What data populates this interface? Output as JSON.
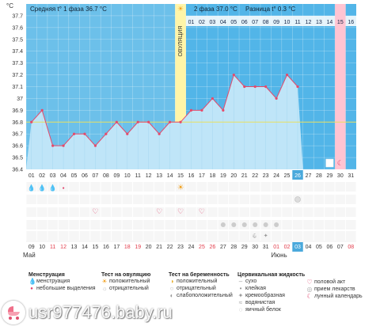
{
  "chart_data": {
    "type": "line",
    "y_unit": "°C",
    "ylim": [
      36.4,
      37.8
    ],
    "y_ticks": [
      36.4,
      36.5,
      36.6,
      36.7,
      36.8,
      36.9,
      37.0,
      37.1,
      37.2,
      37.3,
      37.4,
      37.5,
      37.6,
      37.7
    ],
    "header": {
      "phase1_avg": "Средняя t° 1 фаза 36.7 °С",
      "phase2_avg": "2 фаза 37.0 °С",
      "difference": "Разница t° 0.3 °С"
    },
    "ovulation_label": "ОВУЛЯЦИЯ",
    "ovulation_cycle_day": 15,
    "today_cycle_day": 26,
    "current_cycle_day": 30,
    "coverline": 36.8,
    "phase2_day_numbers": [
      "01",
      "02",
      "03",
      "04",
      "05",
      "06",
      "07",
      "08",
      "09",
      "10",
      "11",
      "12",
      "13",
      "14",
      "15",
      "16"
    ],
    "cycle_day_labels": [
      "01",
      "02",
      "03",
      "04",
      "05",
      "06",
      "07",
      "08",
      "09",
      "10",
      "11",
      "12",
      "13",
      "14",
      "15",
      "16",
      "17",
      "18",
      "19",
      "20",
      "21",
      "22",
      "23",
      "24",
      "25",
      "26",
      "27",
      "28",
      "29",
      "30",
      "31"
    ],
    "x": [
      1,
      2,
      3,
      4,
      5,
      6,
      7,
      8,
      9,
      10,
      11,
      12,
      13,
      14,
      15,
      16,
      17,
      18,
      19,
      20,
      21,
      22,
      23,
      24,
      25,
      26
    ],
    "series": [
      {
        "values": [
          36.8,
          36.9,
          36.6,
          36.6,
          36.7,
          36.7,
          36.6,
          36.7,
          36.8,
          36.7,
          36.8,
          36.8,
          36.7,
          36.8,
          36.8,
          36.9,
          36.9,
          37.0,
          36.9,
          37.2,
          37.1,
          37.1,
          37.1,
          37.0,
          37.2,
          37.1
        ]
      }
    ],
    "calendar_dates": [
      "09",
      "10",
      "11",
      "12",
      "13",
      "14",
      "15",
      "16",
      "17",
      "18",
      "19",
      "20",
      "21",
      "22",
      "23",
      "24",
      "25",
      "26",
      "27",
      "28",
      "29",
      "30",
      "31",
      "01",
      "02",
      "03",
      "04",
      "05",
      "06",
      "07",
      "08"
    ],
    "weekend_dates": [
      "11",
      "12",
      "18",
      "19",
      "25",
      "26",
      "01",
      "02",
      "08"
    ],
    "month_labels": [
      {
        "label": "Май",
        "at_index": 0
      },
      {
        "label": "Июнь",
        "at_index": 23
      }
    ],
    "markers": {
      "menstruation": [
        1,
        2,
        3
      ],
      "spotting": [
        4
      ],
      "ovulation_test_positive": [
        15
      ],
      "intercourse": [
        7,
        13,
        15,
        17
      ],
      "cervical_dry": [
        19,
        20,
        21,
        22,
        23,
        24
      ],
      "medication_pill": [
        26
      ],
      "lunar": [
        22
      ],
      "cervical_watery": [
        22
      ],
      "cervical_creamy": [
        23
      ]
    },
    "colors": {
      "phase1_bg": "#6cc0ea",
      "phase2_bg": "#52b5e8",
      "fill": "#bfe5f8",
      "line": "#e64a6a",
      "ovulation_band": "#fff5a8",
      "current_day_band": "#ffc4d2",
      "coverline": "#e8e060",
      "today_highlight": "#4aa9dc"
    }
  },
  "legend": {
    "menstruation": {
      "title": "Менструация",
      "items": [
        "менструация",
        "небольшие выделения"
      ]
    },
    "ovulation_test": {
      "title": "Тест на овуляцию",
      "items": [
        "положительный",
        "отрицательный"
      ]
    },
    "pregnancy_test": {
      "title": "Тест на беременность",
      "items": [
        "положительный",
        "отрицательный",
        "слабоположительный"
      ]
    },
    "cervical": {
      "title": "Цервикальная жидкость",
      "items": [
        "сухо",
        "клейкая",
        "кремообразная",
        "водянистая",
        "яичный белок"
      ]
    },
    "other": {
      "items": [
        "половой акт",
        "прием лекарств",
        "лунный календарь"
      ]
    }
  },
  "watermark": "usr977476.baby.ru"
}
